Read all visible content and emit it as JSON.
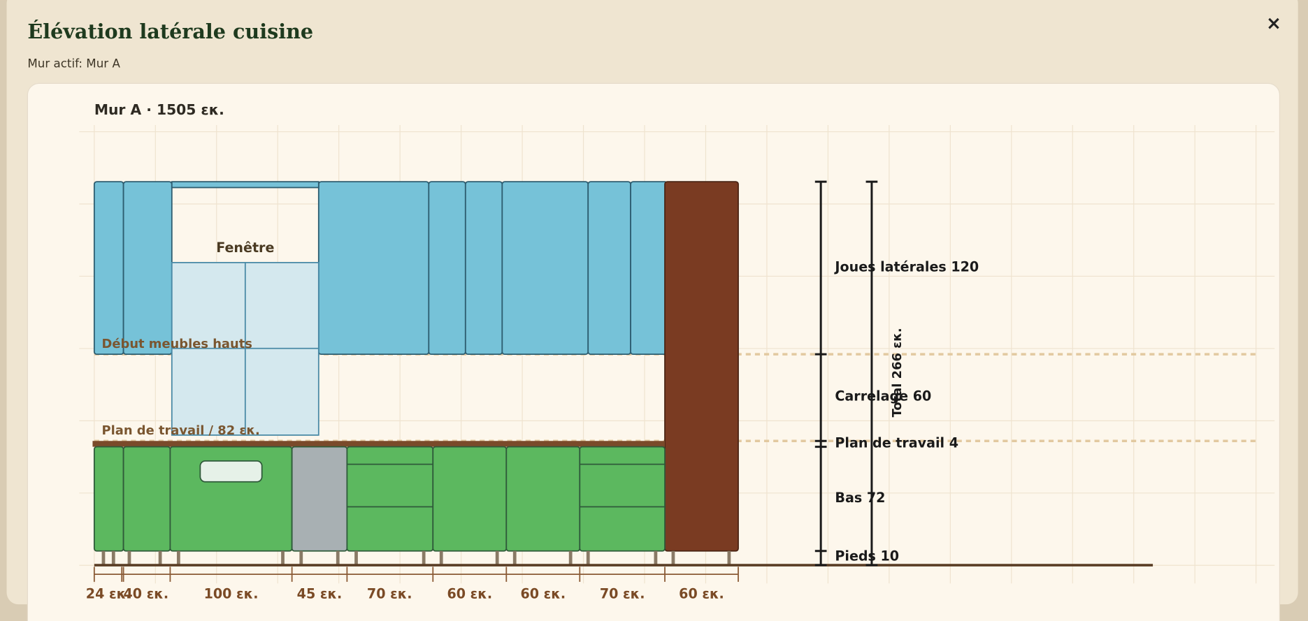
{
  "header": {
    "title": "Élévation latérale cuisine",
    "subtitle": "Mur actif: Mur A",
    "close": "×"
  },
  "wall": {
    "label": "Mur A · 1505 εκ.",
    "window": "Fenêtre",
    "upper_start": "Début meubles hauts",
    "worktop": "Plan de travail / 82 εκ."
  },
  "dimensions": {
    "side_panels": "Joues latérales 120",
    "tiles": "Carrelage 60",
    "worktop": "Plan de travail 4",
    "base": "Bas 72",
    "feet": "Pieds 10",
    "total": "Total 266 εκ."
  },
  "widths": [
    "24 εκ.",
    "40 εκ.",
    "100 εκ.",
    "45 εκ.",
    "70 εκ.",
    "60 εκ.",
    "60 εκ.",
    "70 εκ.",
    "60 εκ."
  ]
}
